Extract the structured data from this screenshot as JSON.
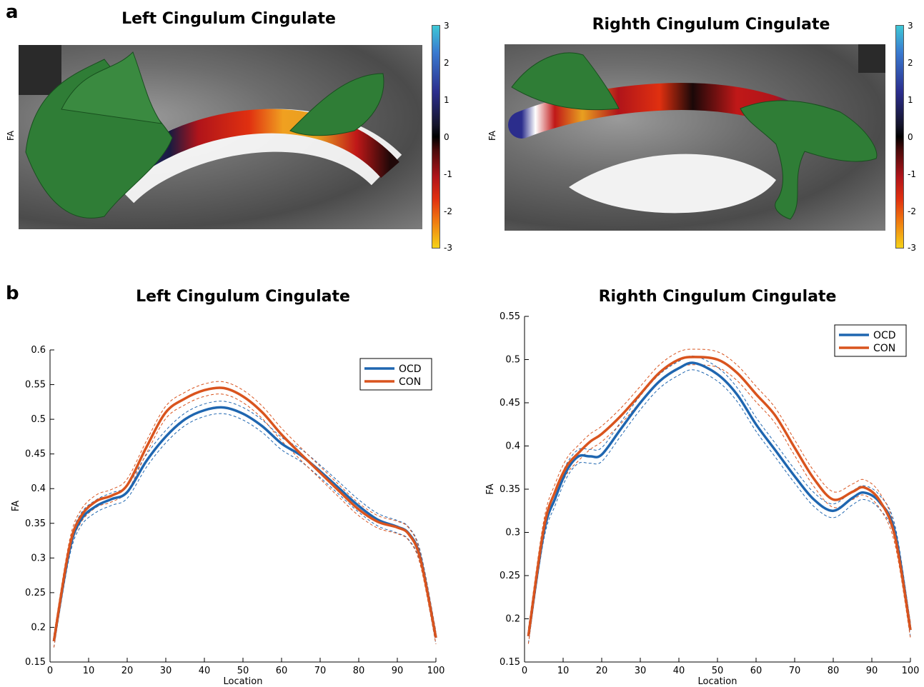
{
  "panel_labels": [
    "a",
    "b"
  ],
  "panel_a": {
    "images": [
      {
        "title": "Left Cingulum Cingulate",
        "ylabel": "FA"
      },
      {
        "title": "Righth Cingulum Cingulate",
        "ylabel": "FA"
      }
    ],
    "colorbar_ticks": [
      "3",
      "2",
      "1",
      "0",
      "-1",
      "-2",
      "-3"
    ],
    "colormap": [
      "#3ec8d6",
      "#2b2d8c",
      "#000000",
      "#b0141a",
      "#f5d218"
    ]
  },
  "chart_data": [
    {
      "type": "line",
      "title": "Left Cingulum Cingulate",
      "xlabel": "Location",
      "ylabel": "FA",
      "xlim": [
        0,
        100
      ],
      "ylim": [
        0.15,
        0.6
      ],
      "xticks": [
        "0",
        "10",
        "20",
        "30",
        "40",
        "50",
        "60",
        "70",
        "80",
        "90",
        "100"
      ],
      "yticks": [
        "0.15",
        "0.2",
        "0.25",
        "0.3",
        "0.35",
        "0.4",
        "0.45",
        "0.5",
        "0.55",
        "0.6"
      ],
      "legend": "top-right",
      "x": [
        1,
        5,
        8,
        12,
        16,
        20,
        25,
        30,
        35,
        40,
        45,
        50,
        55,
        60,
        65,
        70,
        75,
        80,
        85,
        90,
        93,
        96,
        100
      ],
      "series": [
        {
          "name": "OCD",
          "color": "#1f66b0",
          "values": [
            0.18,
            0.31,
            0.355,
            0.375,
            0.385,
            0.395,
            0.44,
            0.475,
            0.5,
            0.513,
            0.517,
            0.508,
            0.49,
            0.465,
            0.448,
            0.425,
            0.4,
            0.375,
            0.355,
            0.345,
            0.335,
            0.3,
            0.185
          ],
          "band": 0.009
        },
        {
          "name": "CON",
          "color": "#d9541e",
          "values": [
            0.18,
            0.315,
            0.36,
            0.382,
            0.39,
            0.405,
            0.46,
            0.51,
            0.53,
            0.542,
            0.545,
            0.533,
            0.51,
            0.478,
            0.45,
            0.423,
            0.396,
            0.37,
            0.352,
            0.344,
            0.334,
            0.298,
            0.185
          ],
          "band": 0.009
        }
      ]
    },
    {
      "type": "line",
      "title": "Righth Cingulum Cingulate",
      "xlabel": "Location",
      "ylabel": "FA",
      "xlim": [
        0,
        100
      ],
      "ylim": [
        0.15,
        0.55
      ],
      "xticks": [
        "0",
        "10",
        "20",
        "30",
        "40",
        "50",
        "60",
        "70",
        "80",
        "90",
        "100"
      ],
      "yticks": [
        "0.15",
        "0.2",
        "0.25",
        "0.3",
        "0.35",
        "0.4",
        "0.45",
        "0.5",
        "0.55"
      ],
      "legend": "top-right",
      "x": [
        1,
        5,
        8,
        11,
        14,
        17,
        20,
        25,
        30,
        35,
        40,
        44,
        50,
        55,
        60,
        65,
        70,
        75,
        80,
        85,
        88,
        92,
        96,
        100
      ],
      "series": [
        {
          "name": "OCD",
          "color": "#1f66b0",
          "values": [
            0.18,
            0.3,
            0.34,
            0.372,
            0.388,
            0.388,
            0.39,
            0.42,
            0.45,
            0.475,
            0.49,
            0.496,
            0.483,
            0.46,
            0.425,
            0.395,
            0.365,
            0.338,
            0.325,
            0.34,
            0.346,
            0.335,
            0.3,
            0.187
          ],
          "band": 0.008
        },
        {
          "name": "CON",
          "color": "#d9541e",
          "values": [
            0.18,
            0.305,
            0.348,
            0.377,
            0.392,
            0.405,
            0.414,
            0.435,
            0.46,
            0.485,
            0.5,
            0.503,
            0.5,
            0.485,
            0.46,
            0.435,
            0.398,
            0.362,
            0.338,
            0.347,
            0.352,
            0.337,
            0.295,
            0.187
          ],
          "band": 0.009
        }
      ]
    }
  ]
}
